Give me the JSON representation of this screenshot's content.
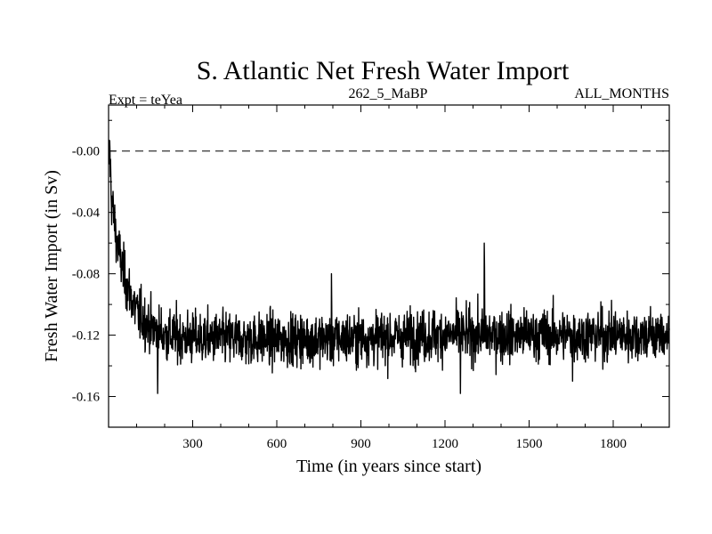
{
  "chart_data": {
    "type": "line",
    "title": "S. Atlantic Net Fresh Water Import",
    "left_label": "Expt = teYea",
    "center_label": "262_5_MaBP",
    "right_label": "ALL_MONTHS",
    "xlabel": "Time (in years since start)",
    "ylabel": "Fresh Water Import (in Sv)",
    "xlim": [
      0,
      2000
    ],
    "ylim": [
      -0.18,
      0.03
    ],
    "xticks": [
      300,
      600,
      900,
      1200,
      1500,
      1800
    ],
    "xtick_labels": [
      "300",
      "600",
      "900",
      "1200",
      "1500",
      "1800"
    ],
    "yticks": [
      0.0,
      -0.04,
      -0.08,
      -0.12,
      -0.16
    ],
    "ytick_labels": [
      "-0.00",
      "-0.04",
      "-0.08",
      "-0.12",
      "-0.16"
    ],
    "reference_line": {
      "y": 0.0,
      "style": "dashed"
    },
    "series": [
      {
        "name": "Net Fresh Water Import",
        "description": "Rapid decline from ~0.00 Sv at start to ~-0.12 Sv by year ~200, then noisy fluctuation around -0.12 Sv (range ~-0.16 to -0.08) through year 2000; spike to ~-0.06 near year 1340.",
        "key_points": [
          [
            1,
            -0.02
          ],
          [
            3,
            0.007
          ],
          [
            10,
            -0.03
          ],
          [
            30,
            -0.06
          ],
          [
            60,
            -0.085
          ],
          [
            100,
            -0.105
          ],
          [
            150,
            -0.115
          ],
          [
            200,
            -0.12
          ],
          [
            300,
            -0.122
          ],
          [
            600,
            -0.123
          ],
          [
            900,
            -0.122
          ],
          [
            1200,
            -0.12
          ],
          [
            1340,
            -0.06
          ],
          [
            1500,
            -0.12
          ],
          [
            1800,
            -0.12
          ],
          [
            2000,
            -0.12
          ]
        ]
      }
    ]
  }
}
